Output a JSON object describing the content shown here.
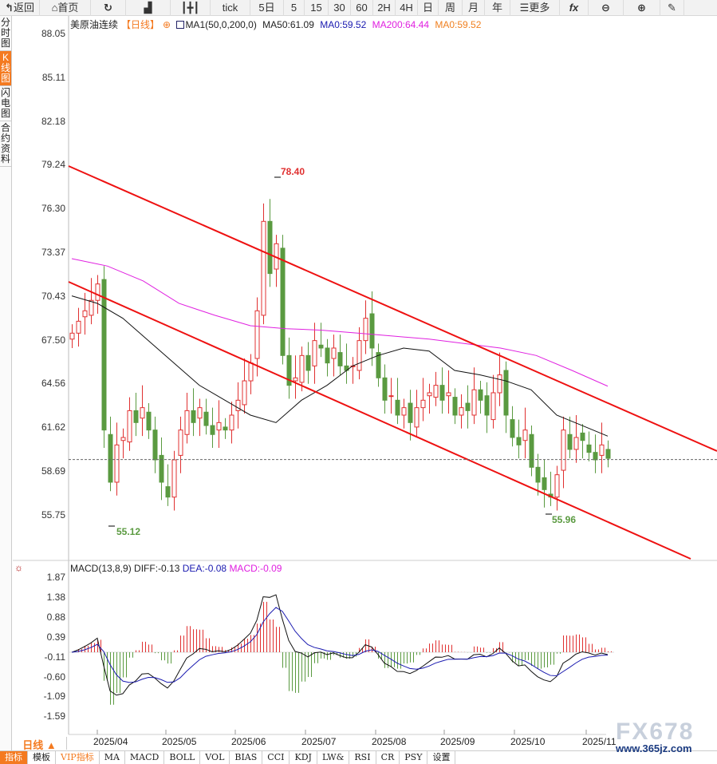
{
  "toolbar": {
    "items": [
      {
        "icon": "back-arrow-icon",
        "label": "返回",
        "w": 50
      },
      {
        "icon": "home-icon",
        "label": "首页",
        "w": 64
      },
      {
        "icon": "refresh-icon",
        "label": "",
        "w": 44
      },
      {
        "icon": "chart-bars-icon",
        "label": "",
        "w": 56
      },
      {
        "icon": "candlestick-icon",
        "label": "",
        "w": 50
      },
      {
        "label": "tick",
        "w": 50
      },
      {
        "label": "5日",
        "w": 42
      },
      {
        "label": "5",
        "w": 26
      },
      {
        "label": "15",
        "w": 30
      },
      {
        "label": "30",
        "w": 28
      },
      {
        "label": "60",
        "w": 28
      },
      {
        "label": "2H",
        "w": 28
      },
      {
        "label": "4H",
        "w": 28
      },
      {
        "label": "日",
        "w": 26
      },
      {
        "label": "周",
        "w": 30
      },
      {
        "label": "月",
        "w": 28
      },
      {
        "label": "年",
        "w": 32
      },
      {
        "icon": "menu-icon",
        "label": "更多",
        "w": 62
      },
      {
        "icon": "fx-icon",
        "label": "fx",
        "w": 36
      },
      {
        "icon": "zoom-out-icon",
        "label": "",
        "w": 44
      },
      {
        "icon": "zoom-in-icon",
        "label": "",
        "w": 46
      },
      {
        "icon": "pen-icon",
        "label": "",
        "w": 30
      }
    ]
  },
  "sidebar": [
    {
      "label": "分时图"
    },
    {
      "label": "K线图",
      "active": true
    },
    {
      "label": "闪电图"
    },
    {
      "label": "合约资料"
    }
  ],
  "legend": {
    "symbol": "美原油连续",
    "period": "【日线】",
    "indicator": "MA1(50,0,200,0)",
    "ma50": "MA50:61.09",
    "ma0a": "MA0:59.52",
    "ma200": "MA200:64.44",
    "ma0b": "MA0:59.52"
  },
  "colors": {
    "up": "#e03030",
    "down": "#5a9a40",
    "ma50": "#111111",
    "ma200": "#e020e0",
    "trend": "#ee1111",
    "dif": "#111111",
    "dea": "#1a1ab0",
    "accent": "#f47a20"
  },
  "chart_data": {
    "type": "candlestick",
    "price_ticks": [
      "88.05",
      "85.11",
      "82.18",
      "79.24",
      "76.30",
      "73.37",
      "70.43",
      "67.50",
      "64.56",
      "61.62",
      "58.69",
      "55.75"
    ],
    "ylim": [
      55.75,
      88.05
    ],
    "closes": [
      68.0,
      68.8,
      69.5,
      70.2,
      71.3,
      61.5,
      58.0,
      60.5,
      61.0,
      62.8,
      62.0,
      63.0,
      61.5,
      59.5,
      58.0,
      57.0,
      59.5,
      61.5,
      62.8,
      62.0,
      63.0,
      61.8,
      61.2,
      62.0,
      61.5,
      62.5,
      63.5,
      64.8,
      66.0,
      69.5,
      75.5,
      72.0,
      74.0,
      66.5,
      64.5,
      65.0,
      66.5,
      65.5,
      67.5,
      67.0,
      66.0,
      67.0,
      65.8,
      65.5,
      65.8,
      67.5,
      69.0,
      67.0,
      65.0,
      63.5,
      63.8,
      62.5,
      63.0,
      62.0,
      63.0,
      63.5,
      64.0,
      64.5,
      63.5,
      64.0,
      62.5,
      63.0,
      62.8,
      64.2,
      63.5,
      62.5,
      64.0,
      65.2,
      62.5,
      61.0,
      60.5,
      61.5,
      59.0,
      58.0,
      57.5,
      57.0,
      58.5,
      61.5,
      60.2,
      61.0,
      60.8,
      60.0,
      59.5,
      60.5,
      59.6
    ],
    "ma50": [
      70.5,
      70.0,
      69.0,
      67.5,
      66.0,
      64.5,
      63.5,
      62.5,
      62.0,
      63.5,
      64.5,
      65.8,
      66.5,
      67.0,
      66.8,
      65.5,
      65.2,
      64.8,
      64.2,
      62.5,
      61.8,
      61.09
    ],
    "ma200": [
      73.0,
      72.5,
      71.5,
      70.0,
      69.2,
      68.5,
      68.3,
      68.2,
      68.0,
      67.8,
      67.6,
      67.3,
      67.0,
      66.5,
      65.5,
      64.44
    ],
    "high_label": "78.40",
    "low_label": "55.12",
    "low2_label": "55.96",
    "last_price": 59.52,
    "dates": [
      "2025/04",
      "2025/05",
      "2025/06",
      "2025/07",
      "2025/08",
      "2025/09",
      "2025/10",
      "2025/11"
    ],
    "macd": {
      "legend": "MACD(13,8,9)",
      "diff": "DIFF:-0.13",
      "dea": "DEA:-0.08",
      "macd": "MACD:-0.09",
      "ticks": [
        "1.87",
        "1.38",
        "0.88",
        "0.39",
        "-0.11",
        "-0.60",
        "-1.09",
        "-1.59"
      ],
      "ylim": [
        -1.59,
        1.87
      ]
    }
  },
  "period_button": "日线 ▲",
  "bottom_tabs": [
    {
      "label": "指标",
      "active": true
    },
    {
      "label": "模板"
    },
    {
      "label": "VIP指标",
      "vip": true
    },
    {
      "label": "MA"
    },
    {
      "label": "MACD"
    },
    {
      "label": "BOLL"
    },
    {
      "label": "VOL"
    },
    {
      "label": "BIAS"
    },
    {
      "label": "CCI"
    },
    {
      "label": "KDJ"
    },
    {
      "label": "LW&"
    },
    {
      "label": "RSI"
    },
    {
      "label": "CR"
    },
    {
      "label": "PSY"
    },
    {
      "label": "设置"
    }
  ],
  "watermark": {
    "brand": "FX678",
    "site": "www.365jz.com"
  }
}
